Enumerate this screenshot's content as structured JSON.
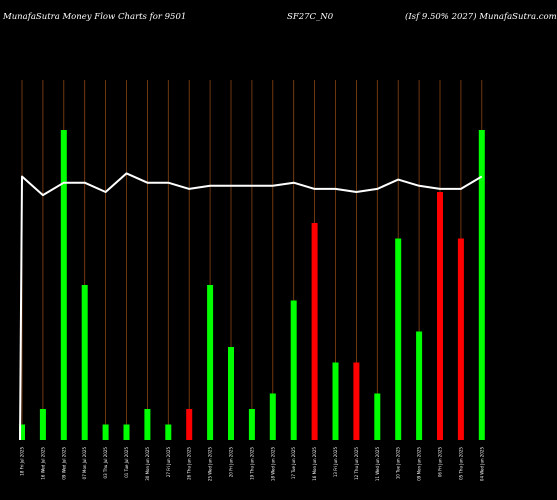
{
  "header": {
    "left": "MunafaSutra  Money Flow  Charts for 9501",
    "middle": "SF27C_N0",
    "right": "(Isf  9.50% 2027) MunafaSutra.com"
  },
  "colors": {
    "background": "#000000",
    "up": "#00ff00",
    "down": "#ff0000",
    "line": "#ffffff",
    "gridline": "#8b4513"
  },
  "chart_data": {
    "type": "bar",
    "ylim": [
      0,
      100
    ],
    "categories": [
      "18 Fri Jul 2025",
      "16 Wed Jul 2025",
      "09 Wed Jul 2025",
      "07 Mon Jul 2025",
      "03 Thu Jul 2025",
      "01 Tue Jul 2025",
      "30 Mon Jun 2025",
      "27 Fri Jun 2025",
      "26 Thu Jun 2025",
      "25 Wed Jun 2025",
      "20 Fri Jun 2025",
      "19 Thu Jun 2025",
      "18 Wed Jun 2025",
      "17 Tue Jun 2025",
      "16 Mon Jun 2025",
      "13 Fri Jun 2025",
      "12 Thu Jun 2025",
      "11 Wed Jun 2025",
      "10 Tue Jun 2025",
      "09 Mon Jun 2025",
      "06 Fri Jun 2025",
      "05 Thu Jun 2025",
      "04 Wed Jun 2025"
    ],
    "series": [
      {
        "values": [
          5,
          10,
          100,
          50,
          5,
          5,
          10,
          5,
          10,
          50,
          30,
          10,
          15,
          45,
          70,
          25,
          25,
          15,
          65,
          35,
          80,
          65,
          100
        ],
        "colors": [
          "up",
          "up",
          "up",
          "up",
          "up",
          "up",
          "up",
          "up",
          "down",
          "up",
          "up",
          "up",
          "up",
          "up",
          "down",
          "up",
          "down",
          "up",
          "up",
          "up",
          "down",
          "down",
          "up"
        ]
      },
      {
        "values": [
          85,
          79,
          83,
          83,
          80,
          86,
          83,
          83,
          81,
          82,
          82,
          82,
          82,
          83,
          81,
          81,
          80,
          81,
          84,
          82,
          81,
          81,
          85
        ]
      }
    ]
  }
}
